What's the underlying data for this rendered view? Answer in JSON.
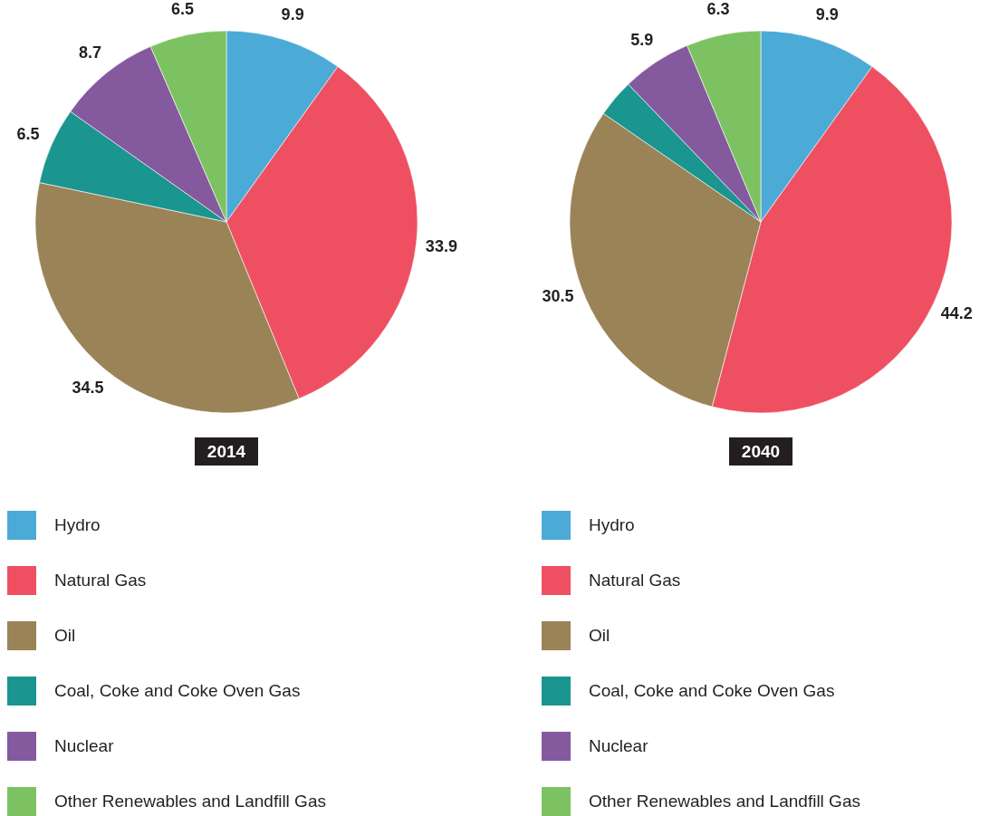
{
  "chart_data": [
    {
      "type": "pie",
      "title": "2014",
      "categories": [
        "Hydro",
        "Natural Gas",
        "Oil",
        "Coal, Coke and Coke Oven Gas",
        "Nuclear",
        "Other Renewables and Landfill Gas"
      ],
      "values": [
        9.9,
        33.9,
        34.5,
        6.5,
        8.7,
        6.5
      ],
      "colors": [
        "#4caad7",
        "#ee5062",
        "#9a8357",
        "#1a9590",
        "#84599e",
        "#7dc262"
      ],
      "data_labels": true,
      "legend": "bottom"
    },
    {
      "type": "pie",
      "title": "2040",
      "categories": [
        "Hydro",
        "Natural Gas",
        "Oil",
        "Coal, Coke and Coke Oven Gas",
        "Nuclear",
        "Other Renewables and Landfill Gas"
      ],
      "values": [
        9.9,
        44.2,
        30.5,
        3.2,
        5.9,
        6.3
      ],
      "colors": [
        "#4caad7",
        "#ee5062",
        "#9a8357",
        "#1a9590",
        "#84599e",
        "#7dc262"
      ],
      "value_labels": [
        "9.9",
        "44.2",
        "30.5",
        null,
        "5.9",
        "6.3"
      ],
      "legend": "bottom"
    }
  ]
}
